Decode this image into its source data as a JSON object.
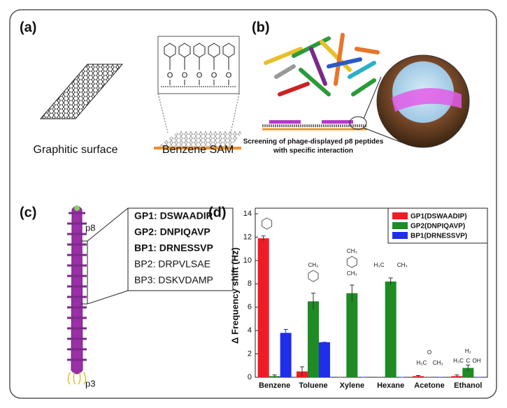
{
  "panels": {
    "a": {
      "label": "(a)",
      "captions": [
        "Graphitic surface",
        "Benzene SAM"
      ],
      "atom": "O"
    },
    "b": {
      "label": "(b)",
      "caption": [
        "Screening of phage-displayed p8 peptides",
        "with specific interaction"
      ]
    },
    "c": {
      "label": "(c)",
      "protein_top": "p8",
      "protein_bottom": "p3",
      "peptides": [
        "GP1: DSWAADIP",
        "GP2: DNPIQAVP",
        "BP1: DRNESSVP",
        "BP2: DRPVLSAE",
        "BP3: DSKVDAMP"
      ]
    }
  },
  "chart_data": {
    "type": "bar",
    "label": "(d)",
    "y_label": "Δ Frequency shift (Hz)",
    "categories": [
      "Benzene",
      "Toluene",
      "Xylene",
      "Hexane",
      "Acetone",
      "Ethanol"
    ],
    "series": [
      {
        "name": "GP1(DSWAADIP)",
        "color": "#ee1c24",
        "values": [
          11.9,
          0.5,
          0,
          0,
          0.1,
          0.1
        ],
        "errors": [
          0.2,
          0.4,
          0,
          0,
          0.05,
          0.1
        ]
      },
      {
        "name": "GP2(DNPIQAVP)",
        "color": "#1e8b24",
        "values": [
          0.1,
          6.5,
          7.2,
          8.2,
          0,
          0.8
        ],
        "errors": [
          0.1,
          0.7,
          0.7,
          0.3,
          0,
          0.25
        ]
      },
      {
        "name": "BP1(DRNESSVP)",
        "color": "#1f2ee8",
        "values": [
          3.8,
          3.0,
          0,
          0,
          0,
          0
        ],
        "errors": [
          0.3,
          0,
          0,
          0,
          0,
          0
        ]
      }
    ],
    "annotations": [
      "CH₃",
      "CH₃",
      "CH₃",
      "H₃C",
      "CH₃",
      "O",
      "H₃C",
      "CH₃",
      "H₂",
      "H₃C",
      "C",
      "OH"
    ],
    "ylim": [
      0,
      14
    ],
    "yticks": [
      0,
      2,
      4,
      6,
      8,
      10,
      12,
      14
    ],
    "legend": "top-right"
  }
}
